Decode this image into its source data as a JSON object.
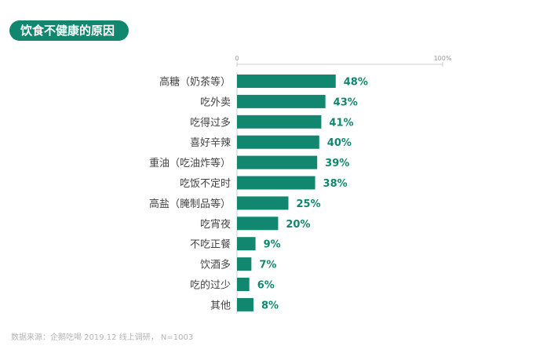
{
  "header": {
    "title": "饮食不健康的原因"
  },
  "chart_data": {
    "type": "bar",
    "orientation": "horizontal",
    "title": "饮食不健康的原因",
    "axis": {
      "min_label": "0",
      "max_label": "100%",
      "xlim": [
        0,
        100
      ]
    },
    "categories": [
      "高糖（奶茶等）",
      "吃外卖",
      "吃得过多",
      "喜好辛辣",
      "重油（吃油炸等）",
      "吃饭不定时",
      "高盐（腌制品等）",
      "吃宵夜",
      "不吃正餐",
      "饮酒多",
      "吃的过少",
      "其他"
    ],
    "values": [
      48,
      43,
      41,
      40,
      39,
      38,
      25,
      20,
      9,
      7,
      6,
      8
    ],
    "value_labels": [
      "48%",
      "43%",
      "41%",
      "40%",
      "39%",
      "38%",
      "25%",
      "20%",
      "9%",
      "7%",
      "6%",
      "8%"
    ],
    "bar_color": "#11876f",
    "label_color": "#11876f",
    "grid": false
  },
  "footer": {
    "source": "数据来源：企鹅吃喝 2019.12 线上调研， N=1003"
  }
}
